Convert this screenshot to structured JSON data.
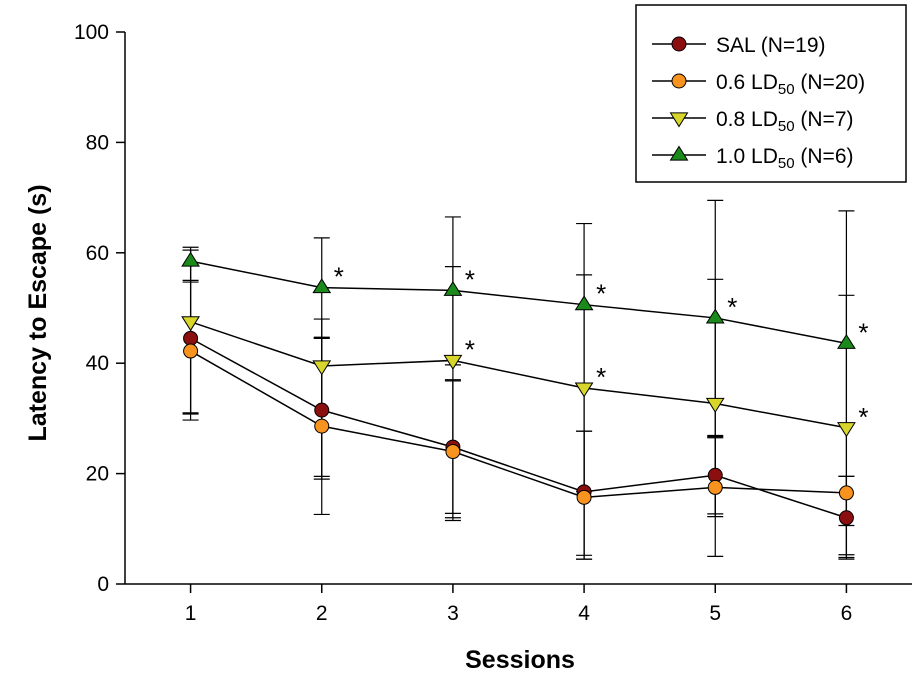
{
  "chart_data": {
    "type": "line",
    "title": "",
    "xlabel": "Sessions",
    "ylabel": "Latency to Escape (s)",
    "x": [
      1,
      2,
      3,
      4,
      5,
      6
    ],
    "x_tick_labels": [
      "1",
      "2",
      "3",
      "4",
      "5",
      "6"
    ],
    "xlim": [
      0.5,
      6.5
    ],
    "ylim": [
      0,
      100
    ],
    "y_ticks": [
      0,
      20,
      40,
      60,
      80,
      100
    ],
    "grid": false,
    "legend_position": "top-right",
    "series": [
      {
        "legend_parts": [
          "SAL (N=19)"
        ],
        "marker": "circle",
        "color": "#8b0f0f",
        "values": [
          44.5,
          31.5,
          24.8,
          16.7,
          19.7,
          12.0
        ],
        "err_plus": [
          16.0,
          13.0,
          12.0,
          11.0,
          7.0,
          7.5
        ],
        "err_minus": [
          13.5,
          12.0,
          12.0,
          11.5,
          7.5,
          6.7
        ],
        "significant": [
          false,
          false,
          false,
          false,
          false,
          false
        ]
      },
      {
        "legend_parts": [
          "0.6 LD",
          "50",
          " (N=20)"
        ],
        "marker": "circle",
        "color": "#f7931e",
        "values": [
          42.2,
          28.6,
          24.0,
          15.7,
          17.5,
          16.5
        ],
        "err_plus": [
          12.5,
          16.0,
          13.0,
          12.0,
          9.0,
          3.0
        ],
        "err_minus": [
          12.5,
          16.0,
          12.5,
          11.2,
          12.5,
          12.0
        ],
        "significant": [
          false,
          false,
          false,
          false,
          false,
          false
        ]
      },
      {
        "legend_parts": [
          "0.8 LD",
          "50",
          " (N=7)"
        ],
        "marker": "triangle-down",
        "color": "#d8d62a",
        "values": [
          47.5,
          39.5,
          40.5,
          35.5,
          32.7,
          28.3
        ],
        "err_plus": [
          13.5,
          8.5,
          17.0,
          20.5,
          22.5,
          24.0
        ],
        "err_minus": [
          16.7,
          20.5,
          28.5,
          31.0,
          20.0,
          23.5
        ],
        "significant": [
          false,
          false,
          true,
          true,
          false,
          true
        ]
      },
      {
        "legend_parts": [
          "1.0 LD",
          "50",
          " (N=6)"
        ],
        "marker": "triangle-up",
        "color": "#1a8a1a",
        "values": [
          58.5,
          53.7,
          53.2,
          50.6,
          48.2,
          43.6
        ],
        "err_plus": [
          2.0,
          9.0,
          13.3,
          14.7,
          21.3,
          24.0
        ],
        "err_minus": [
          3.5,
          9.0,
          13.5,
          33.8,
          21.3,
          33.0
        ],
        "significant": [
          false,
          true,
          true,
          true,
          true,
          true
        ]
      }
    ],
    "significance_marker": "*"
  }
}
